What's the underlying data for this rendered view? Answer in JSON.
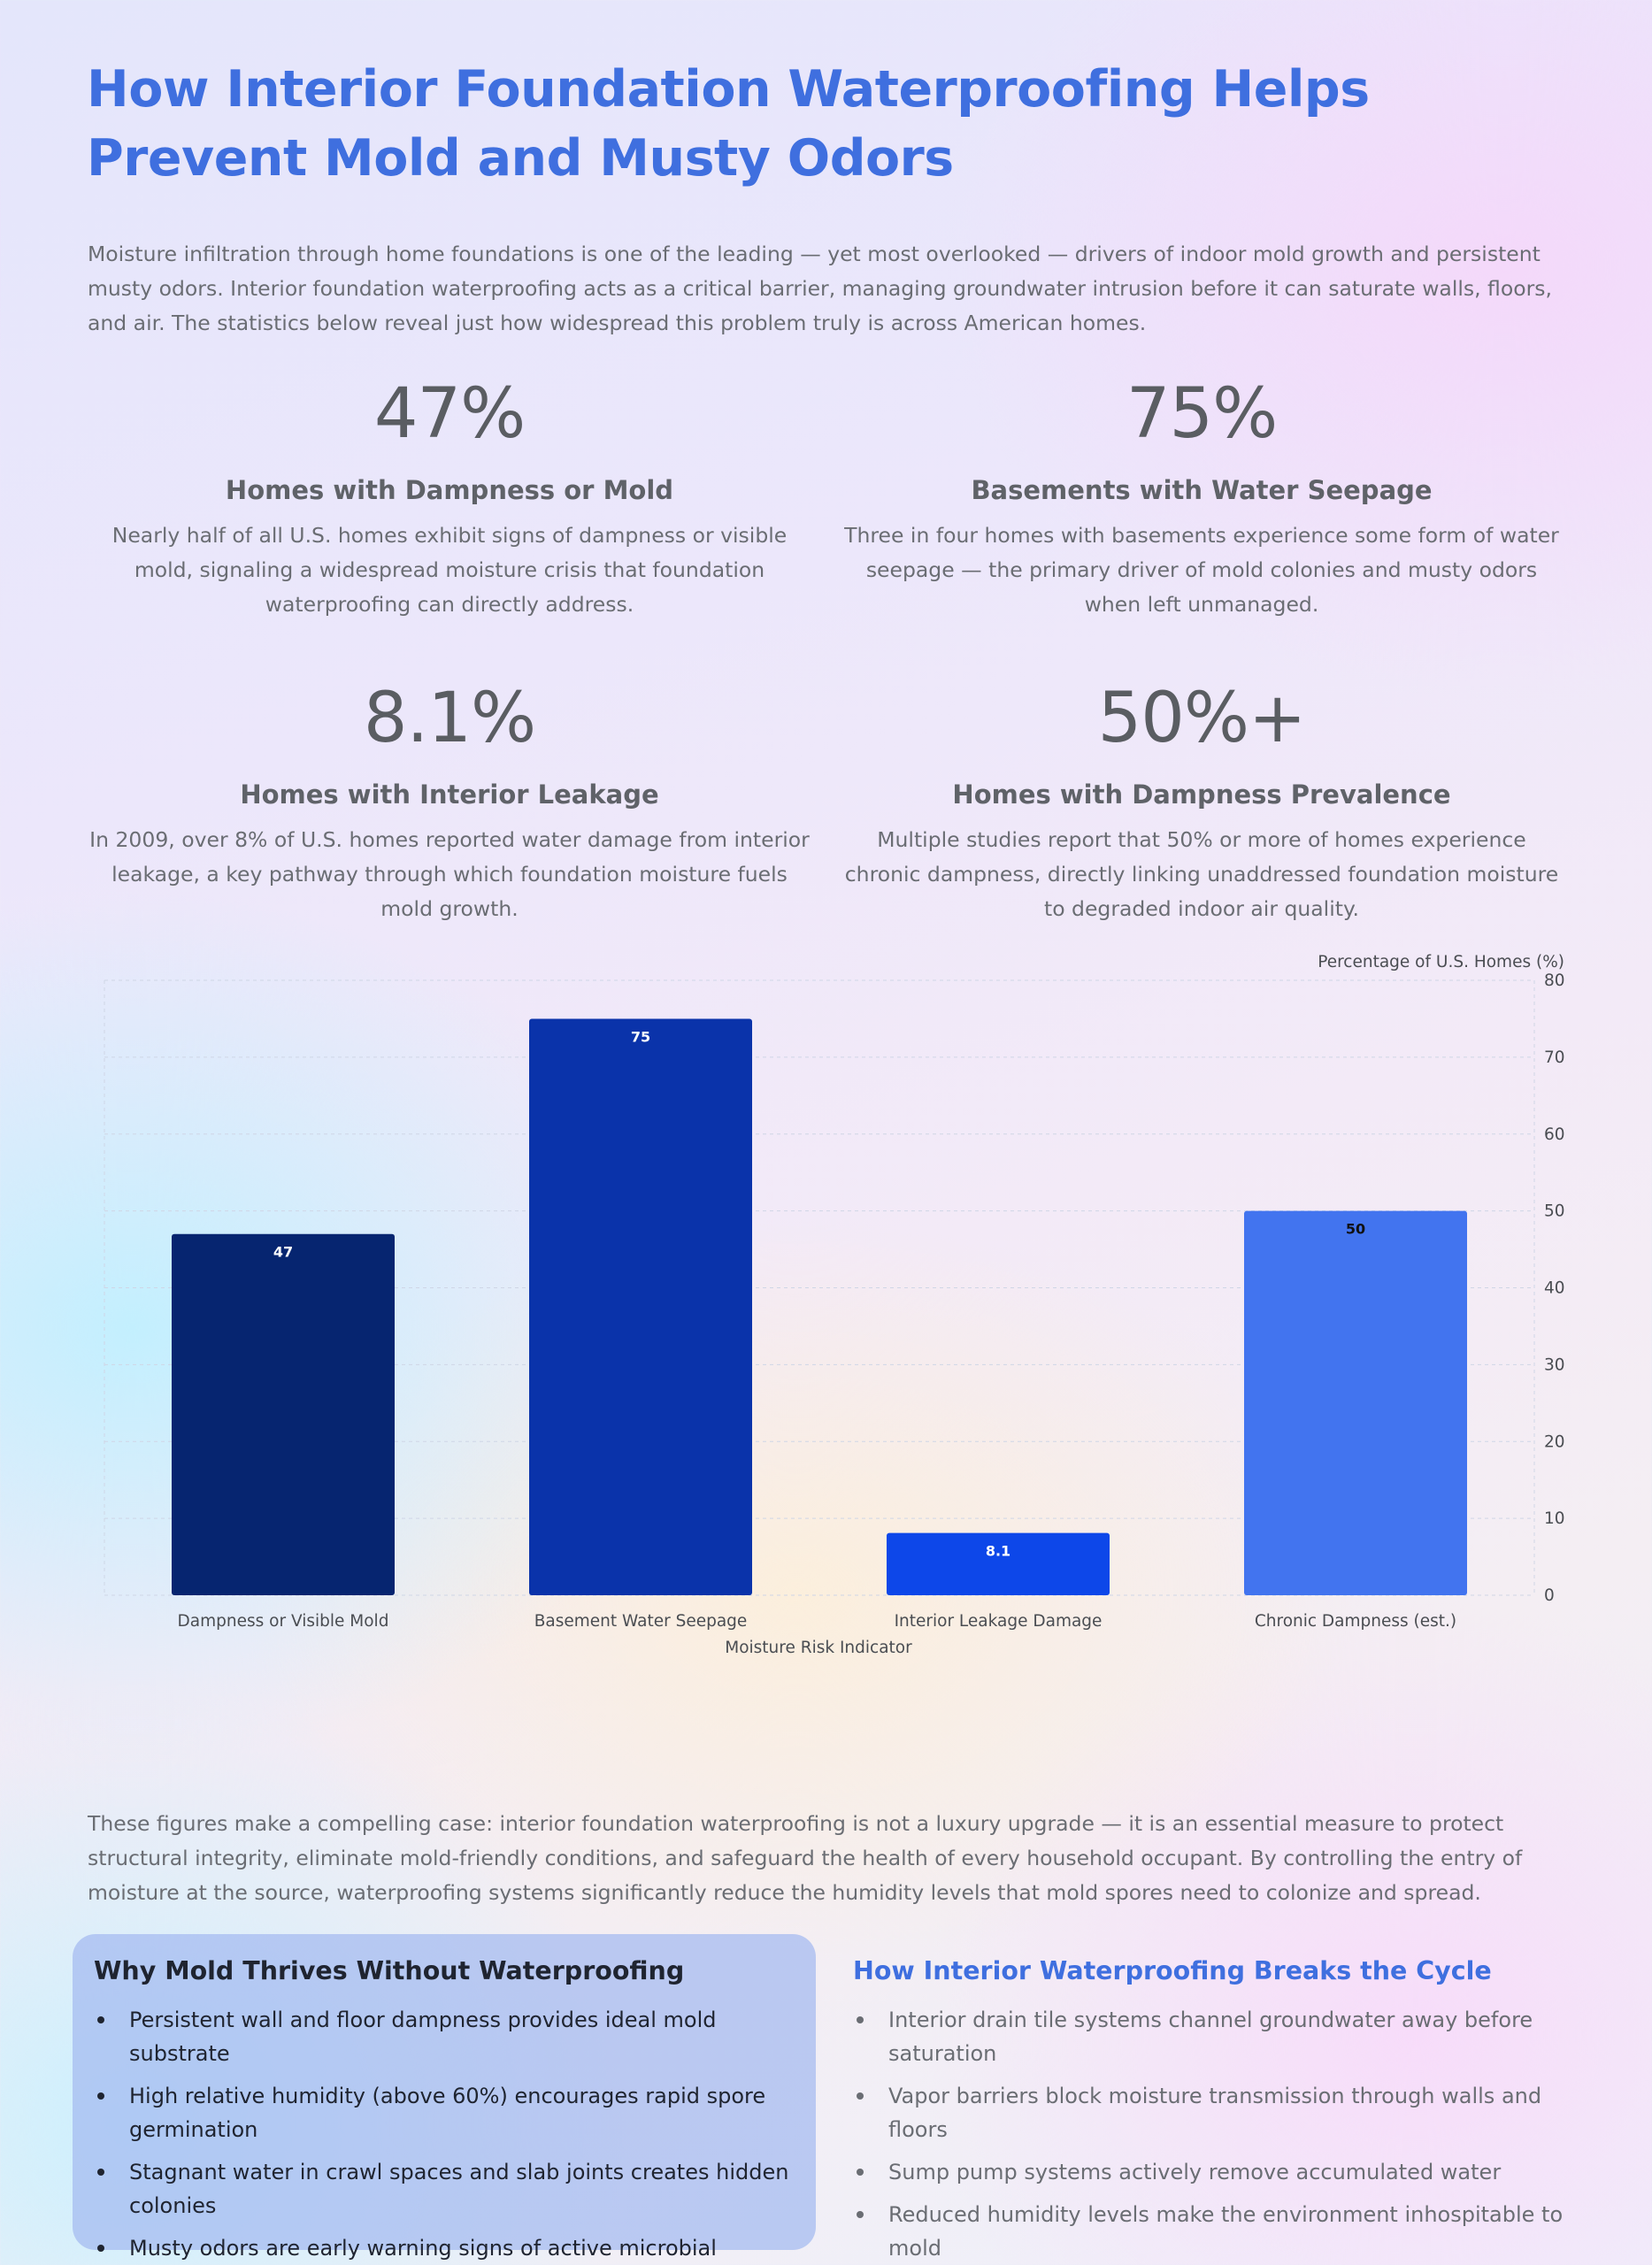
{
  "header": {
    "title": "How Interior Foundation Waterproofing Helps Prevent Mold and Musty Odors",
    "intro": "Moisture infiltration through home foundations is one of the leading — yet most overlooked — drivers of indoor mold growth and persistent musty odors. Interior foundation waterproofing acts as a critical barrier, managing groundwater intrusion before it can saturate walls, floors, and air. The statistics below reveal just how widespread this problem truly is across American homes."
  },
  "stats": [
    {
      "value": "47%",
      "label": "Homes with Dampness or Mold",
      "description": "Nearly half of all U.S. homes exhibit signs of dampness or visible mold, signaling a widespread moisture crisis that foundation waterproofing can directly address."
    },
    {
      "value": "75%",
      "label": "Basements with Water Seepage",
      "description": "Three in four homes with basements experience some form of water seepage — the primary driver of mold colonies and musty odors when left unmanaged."
    },
    {
      "value": "8.1%",
      "label": "Homes with Interior Leakage",
      "description": "In 2009, over 8% of U.S. homes reported water damage from interior leakage, a key pathway through which foundation moisture fuels mold growth."
    },
    {
      "value": "50%+",
      "label": "Homes with Dampness Prevalence",
      "description": "Multiple studies report that 50% or more of homes experience chronic dampness, directly linking unaddressed foundation moisture to degraded indoor air quality."
    }
  ],
  "chart_data": {
    "type": "bar",
    "categories": [
      "Dampness or Visible Mold",
      "Basement Water Seepage",
      "Interior Leakage Damage",
      "Chronic Dampness (est.)"
    ],
    "values": [
      47,
      75,
      8.1,
      50
    ],
    "value_labels": [
      "47",
      "75",
      "8.1",
      "50"
    ],
    "colors": [
      "#062570",
      "#0a33aa",
      "#0d47e9",
      "#4274ef"
    ],
    "label_colors": [
      "#ffffff",
      "#ffffff",
      "#ffffff",
      "#111111"
    ],
    "title": "",
    "xlabel": "Moisture Risk Indicator",
    "ylabel": "Percentage of U.S. Homes (%)",
    "ylim": [
      0,
      80
    ],
    "yticks": [
      0,
      10,
      20,
      30,
      40,
      50,
      60,
      70,
      80
    ],
    "y_axis_side": "right",
    "grid": true
  },
  "closing": "These figures make a compelling case: interior foundation waterproofing is not a luxury upgrade — it is an essential measure to protect structural integrity, eliminate mold-friendly conditions, and safeguard the health of every household occupant. By controlling the entry of moisture at the source, waterproofing systems significantly reduce the humidity levels that mold spores need to colonize and spread.",
  "why_mold": {
    "title": "Why Mold Thrives Without Waterproofing",
    "items": [
      "Persistent wall and floor dampness provides ideal mold substrate",
      "High relative humidity (above 60%) encourages rapid spore germination",
      "Stagnant water in crawl spaces and slab joints creates hidden colonies",
      "Musty odors are early warning signs of active microbial growth"
    ]
  },
  "breaks_cycle": {
    "title": "How Interior Waterproofing Breaks the Cycle",
    "items": [
      "Interior drain tile systems channel groundwater away before saturation",
      "Vapor barriers block moisture transmission through walls and floors",
      "Sump pump systems actively remove accumulated water",
      "Reduced humidity levels make the environment inhospitable to mold"
    ]
  }
}
